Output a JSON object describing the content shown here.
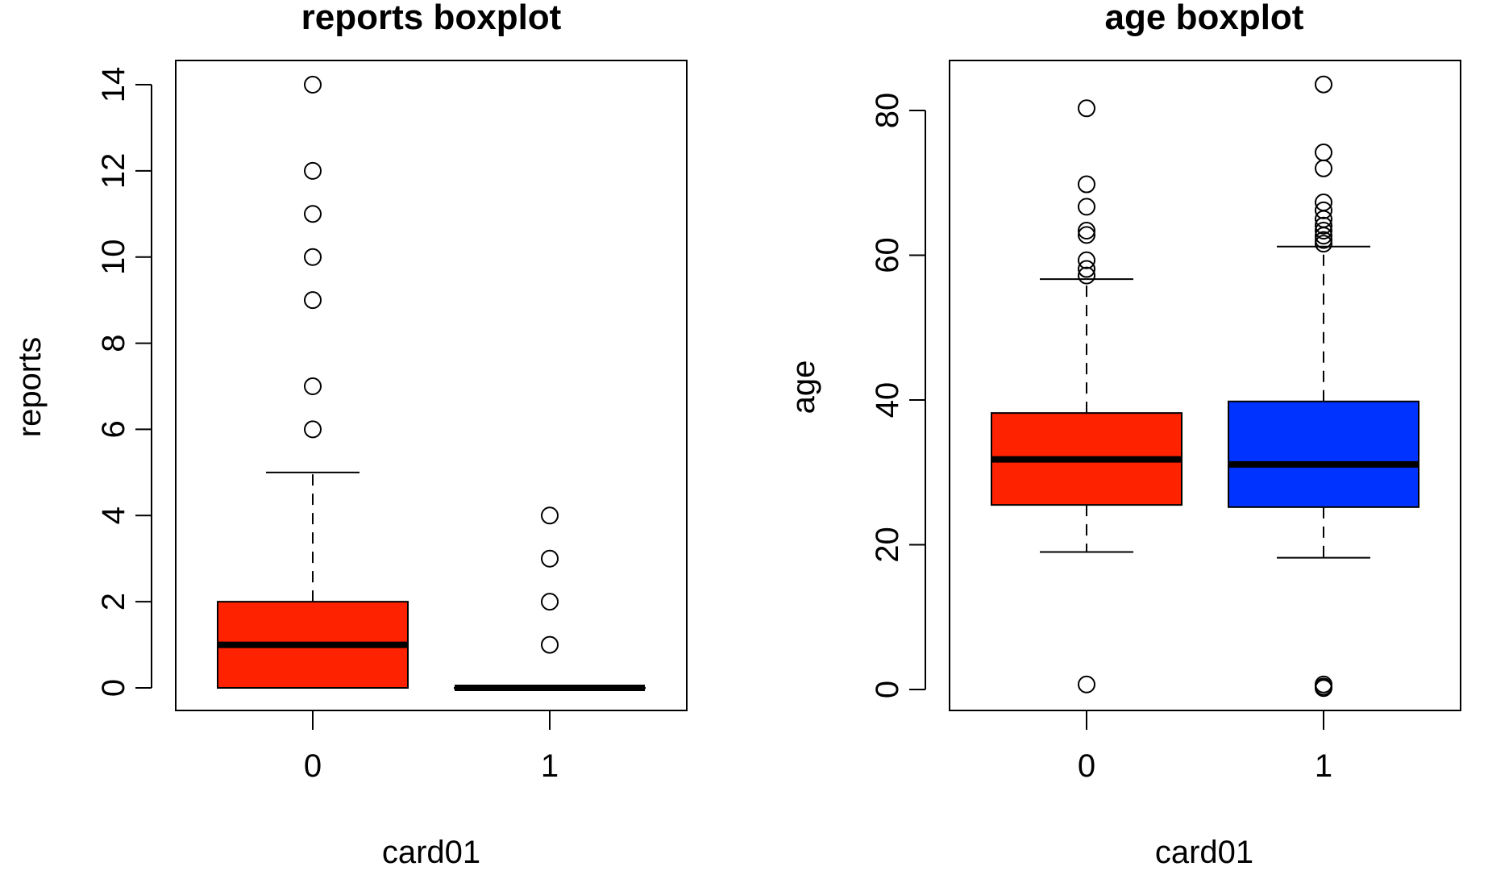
{
  "chart_data": [
    {
      "type": "boxplot",
      "title": "reports boxplot",
      "xlabel": "card01",
      "ylabel": "reports",
      "ylim": [
        0,
        14
      ],
      "yticks": [
        0,
        2,
        4,
        6,
        8,
        10,
        12,
        14
      ],
      "categories": [
        "0",
        "1"
      ],
      "boxes": [
        {
          "category": "0",
          "color": "#ff2200",
          "q1": 0,
          "median": 1,
          "q3": 2,
          "whisker_low": 0,
          "whisker_high": 5,
          "outliers": [
            6,
            7,
            9,
            10,
            11,
            12,
            14
          ]
        },
        {
          "category": "1",
          "color": "#ff2200",
          "q1": 0,
          "median": 0,
          "q3": 0,
          "whisker_low": 0,
          "whisker_high": 0,
          "outliers": [
            1,
            2,
            3,
            4
          ]
        }
      ],
      "grid": false,
      "legend": "none"
    },
    {
      "type": "boxplot",
      "title": "age boxplot",
      "xlabel": "card01",
      "ylabel": "age",
      "ylim": [
        0,
        80
      ],
      "yticks": [
        0,
        20,
        40,
        60,
        80
      ],
      "categories": [
        "0",
        "1"
      ],
      "boxes": [
        {
          "category": "0",
          "color": "#ff2200",
          "q1": 25.5,
          "median": 31.8,
          "q3": 38.2,
          "whisker_low": 19,
          "whisker_high": 56.7,
          "outliers": [
            0.7,
            57.2,
            58.1,
            59.3,
            62.8,
            63.4,
            66.7,
            69.8,
            80.3
          ]
        },
        {
          "category": "1",
          "color": "#0033ff",
          "q1": 25.2,
          "median": 31.1,
          "q3": 39.8,
          "whisker_low": 18.2,
          "whisker_high": 61.2,
          "outliers": [
            0.2,
            0.4,
            0.7,
            61.6,
            62.1,
            62.7,
            63.4,
            64.1,
            65.0,
            66.2,
            67.3,
            72.0,
            74.2,
            83.6
          ]
        }
      ],
      "grid": false,
      "legend": "none"
    }
  ]
}
